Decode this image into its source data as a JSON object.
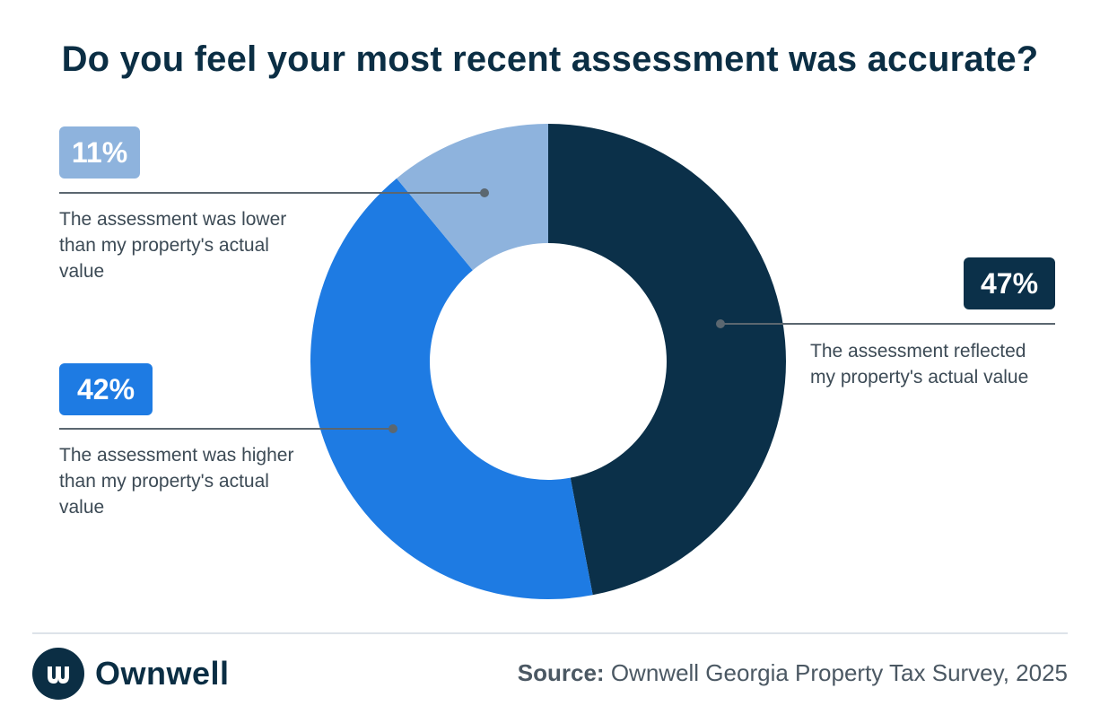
{
  "title": "Do you feel your most recent assessment was accurate?",
  "chart_data": {
    "type": "pie",
    "subtype": "donut",
    "title": "Do you feel your most recent assessment was accurate?",
    "slices": [
      {
        "key": "reflected",
        "label": "The assessment reflected my property's actual value",
        "value": 47,
        "value_label": "47%",
        "color": "#0b3049"
      },
      {
        "key": "higher",
        "label": "The assessment was higher than my property's actual value",
        "value": 42,
        "value_label": "42%",
        "color": "#1e7be3"
      },
      {
        "key": "lower",
        "label": "The assessment was lower than my property's actual value",
        "value": 11,
        "value_label": "11%",
        "color": "#8eb3dd"
      }
    ]
  },
  "callouts": {
    "lower": {
      "badge": "11%",
      "line1": "The assessment was lower",
      "line2": "than my property's actual",
      "line3": "value"
    },
    "reflected": {
      "badge": "47%",
      "line1": "The assessment reflected",
      "line2": "my property's actual value"
    },
    "higher": {
      "badge": "42%",
      "line1": "The assessment was higher",
      "line2": "than my property's actual",
      "line3": "value"
    }
  },
  "footer": {
    "brand": "Ownwell",
    "source_label": "Source:",
    "source_text": "Ownwell Georgia Property Tax Survey, 2025"
  },
  "colors": {
    "navy": "#0b2e44",
    "blue": "#1e7be3",
    "light_blue": "#8eb3dd",
    "connector": "#5b6770"
  }
}
